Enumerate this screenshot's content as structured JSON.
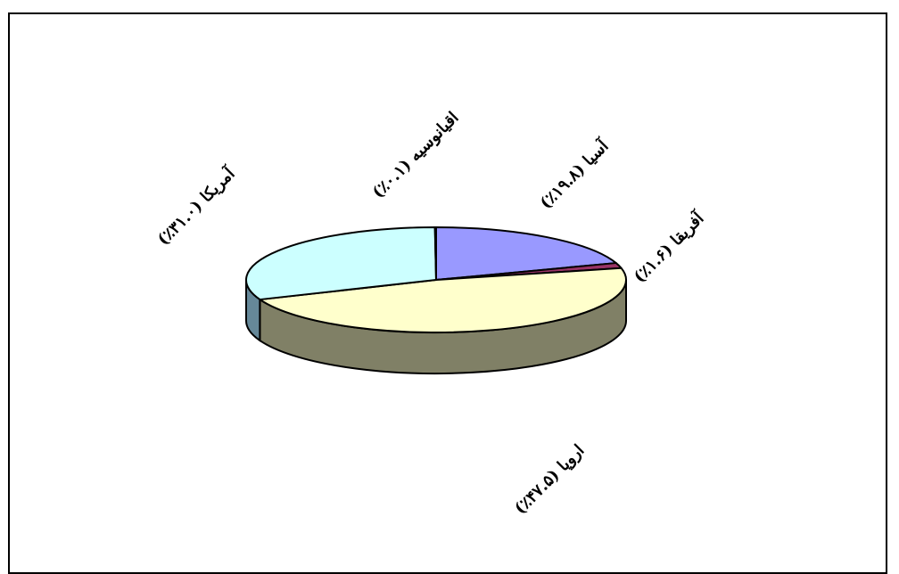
{
  "chart_data": {
    "type": "pie",
    "style": "3d-exploded-flat",
    "series": [
      {
        "label": "آسیا (۱۹.۸٪)",
        "value": 19.8,
        "color": "#9999FF"
      },
      {
        "label": "آفریقا (۱.۶٪)",
        "value": 1.6,
        "color": "#993366"
      },
      {
        "label": "اروپا (۴۷.۵٪)",
        "value": 47.5,
        "color": "#FFFFCC"
      },
      {
        "label": "آمریکا (۳۱.۰٪)",
        "value": 31.0,
        "color": "#CCFFFF"
      },
      {
        "label": "اقیانوسیه (۰.۱٪)",
        "value": 0.1,
        "color": "#660066"
      }
    ],
    "side_colors": {
      "آسیا (۱۹.۸٪)": "#6666CC",
      "آفریقا (۱.۶٪)": "#661144",
      "اروپا (۴۷.۵٪)": "#808066",
      "آمریکا (۳۱.۰٪)": "#668899",
      "اقیانوسیه (۰.۱٪)": "#330033"
    },
    "legend": "none"
  }
}
